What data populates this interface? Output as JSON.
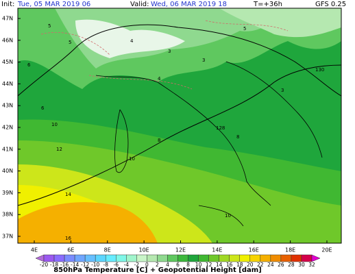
{
  "header": {
    "init_label": "Init:",
    "init_time": "Tue, 05 MAR 2019  06",
    "valid_label": "Valid:",
    "valid_time": "Wed, 06 MAR 2019  18",
    "lead": "T=+36h",
    "model": "GFS 0.25"
  },
  "map": {
    "lat_labels": [
      "47N",
      "46N",
      "45N",
      "44N",
      "43N",
      "42N",
      "41N",
      "40N",
      "39N",
      "38N",
      "37N"
    ],
    "lon_labels": [
      "4E",
      "6E",
      "8E",
      "10E",
      "12E",
      "14E",
      "16E",
      "18E",
      "20E"
    ],
    "contour_labels": [
      "5",
      "5",
      "4",
      "3",
      "3",
      "4",
      "6",
      "6",
      "8",
      "10",
      "12",
      "14",
      "16",
      "10",
      "10",
      "8",
      "130",
      "128",
      "3",
      "5"
    ]
  },
  "scale": {
    "labels": [
      -20,
      -18,
      -16,
      -14,
      -12,
      -10,
      -8,
      -6,
      -4,
      -2,
      0,
      2,
      4,
      6,
      8,
      10,
      12,
      14,
      16,
      18,
      20,
      22,
      24,
      26,
      28,
      30,
      32
    ],
    "colors": [
      "#b36bdb",
      "#9b59f0",
      "#8a6cff",
      "#7a8cff",
      "#6fa6ff",
      "#66bfff",
      "#5cd6ff",
      "#66ecff",
      "#7ff7e8",
      "#a0f5cc",
      "#c8f5c8",
      "#b5e8b0",
      "#8fd98f",
      "#5fc85f",
      "#3cb83c",
      "#1fa63c",
      "#40b832",
      "#6fc82a",
      "#a0d824",
      "#cde61a",
      "#f0f000",
      "#f8d400",
      "#f5b000",
      "#f08c00",
      "#e86000",
      "#e03000",
      "#d4004a",
      "#e000d0"
    ]
  },
  "footer": {
    "title": "850hPa Temperature [C] + Geopotential Height [dam]"
  }
}
